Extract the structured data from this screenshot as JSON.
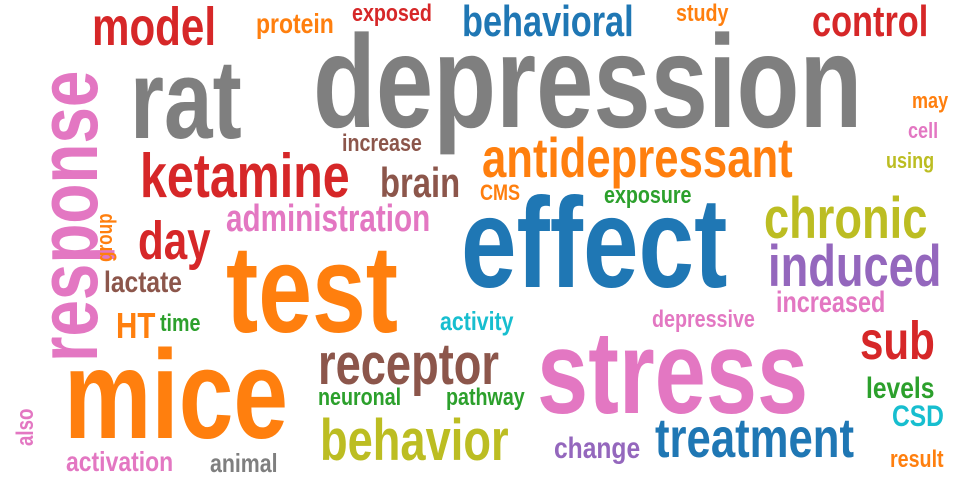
{
  "words": [
    {
      "key": "depression",
      "text": "depression",
      "color": "#7f7f7f"
    },
    {
      "key": "rat",
      "text": "rat",
      "color": "#7f7f7f"
    },
    {
      "key": "effect",
      "text": "effect",
      "color": "#1f77b4"
    },
    {
      "key": "stress",
      "text": "stress",
      "color": "#e377c2"
    },
    {
      "key": "test",
      "text": "test",
      "color": "#ff7f0e"
    },
    {
      "key": "mice",
      "text": "mice",
      "color": "#ff7f0e"
    },
    {
      "key": "response",
      "text": "response",
      "color": "#e377c2"
    },
    {
      "key": "ketamine",
      "text": "ketamine",
      "color": "#d62728"
    },
    {
      "key": "antidepressant",
      "text": "antidepressant",
      "color": "#ff7f0e"
    },
    {
      "key": "receptor",
      "text": "receptor",
      "color": "#8c564b"
    },
    {
      "key": "behavior",
      "text": "behavior",
      "color": "#bcbd22"
    },
    {
      "key": "treatment",
      "text": "treatment",
      "color": "#1f77b4"
    },
    {
      "key": "chronic",
      "text": "chronic",
      "color": "#bcbd22"
    },
    {
      "key": "induced",
      "text": "induced",
      "color": "#9467bd"
    },
    {
      "key": "model",
      "text": "model",
      "color": "#d62728"
    },
    {
      "key": "control",
      "text": "control",
      "color": "#d62728"
    },
    {
      "key": "behavioral",
      "text": "behavioral",
      "color": "#1f77b4"
    },
    {
      "key": "day",
      "text": "day",
      "color": "#d62728"
    },
    {
      "key": "sub",
      "text": "sub",
      "color": "#d62728"
    },
    {
      "key": "brain",
      "text": "brain",
      "color": "#8c564b"
    },
    {
      "key": "administration",
      "text": "administration",
      "color": "#e377c2"
    },
    {
      "key": "increased",
      "text": "increased",
      "color": "#e377c2"
    },
    {
      "key": "protein",
      "text": "protein",
      "color": "#ff7f0e"
    },
    {
      "key": "exposed",
      "text": "exposed",
      "color": "#d62728"
    },
    {
      "key": "study",
      "text": "study",
      "color": "#ff7f0e"
    },
    {
      "key": "may",
      "text": "may",
      "color": "#ff7f0e"
    },
    {
      "key": "cell",
      "text": "cell",
      "color": "#e377c2"
    },
    {
      "key": "using",
      "text": "using",
      "color": "#bcbd22"
    },
    {
      "key": "increase",
      "text": "increase",
      "color": "#8c564b"
    },
    {
      "key": "cms",
      "text": "CMS",
      "color": "#ff7f0e"
    },
    {
      "key": "exposure",
      "text": "exposure",
      "color": "#2ca02c"
    },
    {
      "key": "group",
      "text": "group",
      "color": "#ff7f0e"
    },
    {
      "key": "lactate",
      "text": "lactate",
      "color": "#8c564b"
    },
    {
      "key": "ht",
      "text": "HT",
      "color": "#ff7f0e"
    },
    {
      "key": "time",
      "text": "time",
      "color": "#2ca02c"
    },
    {
      "key": "activity",
      "text": "activity",
      "color": "#17becf"
    },
    {
      "key": "depressive",
      "text": "depressive",
      "color": "#e377c2"
    },
    {
      "key": "levels",
      "text": "levels",
      "color": "#2ca02c"
    },
    {
      "key": "csd",
      "text": "CSD",
      "color": "#17becf"
    },
    {
      "key": "neuronal",
      "text": "neuronal",
      "color": "#2ca02c"
    },
    {
      "key": "pathway",
      "text": "pathway",
      "color": "#2ca02c"
    },
    {
      "key": "change",
      "text": "change",
      "color": "#9467bd"
    },
    {
      "key": "also",
      "text": "also",
      "color": "#e377c2"
    },
    {
      "key": "activation",
      "text": "activation",
      "color": "#e377c2"
    },
    {
      "key": "animal",
      "text": "animal",
      "color": "#7f7f7f"
    },
    {
      "key": "result",
      "text": "result",
      "color": "#ff7f0e"
    }
  ]
}
